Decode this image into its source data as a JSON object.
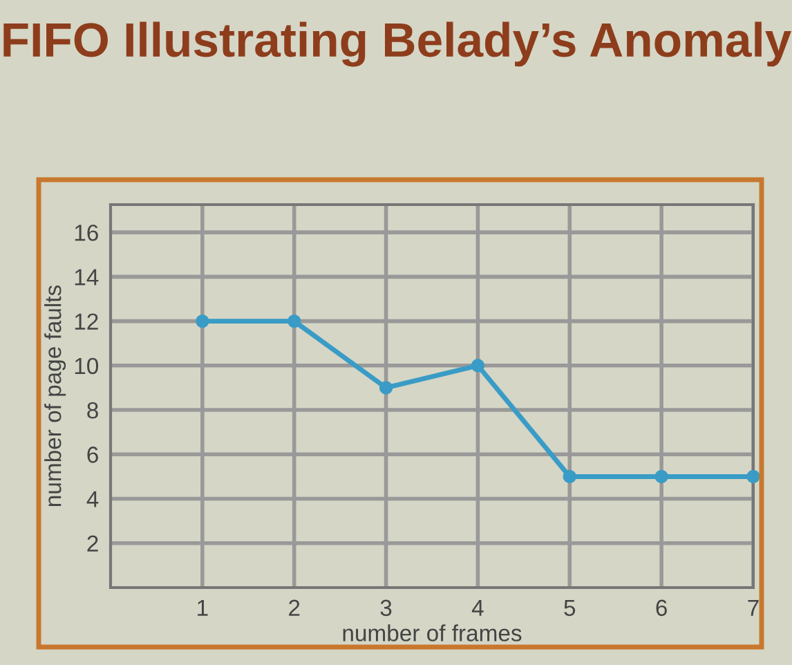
{
  "chart_data": {
    "type": "line",
    "title": "FIFO Illustrating Belady’s Anomaly",
    "xlabel": "number of frames",
    "ylabel": "number of page faults",
    "x": [
      1,
      2,
      3,
      4,
      5,
      6,
      7
    ],
    "series": [
      {
        "color": "#3a9cc6",
        "values": [
          12,
          12,
          9,
          10,
          5,
          5,
          5
        ]
      }
    ],
    "xlim": [
      0,
      7
    ],
    "xticks": [
      1,
      2,
      3,
      4,
      5,
      6,
      7
    ],
    "ylim": [
      0,
      17.25
    ],
    "yticks": [
      2,
      4,
      6,
      8,
      10,
      12,
      14,
      16
    ],
    "grid": true,
    "marker": "circle",
    "line_style": "solid",
    "legend": false
  }
}
